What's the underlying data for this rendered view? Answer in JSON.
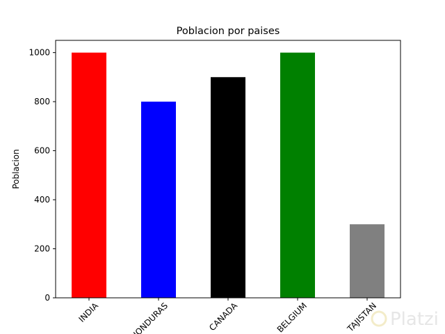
{
  "chart_data": {
    "type": "bar",
    "title": "Poblacion por paises",
    "xlabel": "",
    "ylabel": "Poblacion",
    "categories": [
      "INDIA",
      "HONDURAS",
      "CANADA",
      "BELGIUM",
      "TAJISTAN"
    ],
    "values": [
      1000,
      800,
      900,
      1000,
      300
    ],
    "colors": [
      "#ff0000",
      "#0000ff",
      "#000000",
      "#008000",
      "#808080"
    ],
    "ylim": [
      0,
      1050
    ],
    "yticks": [
      0,
      200,
      400,
      600,
      800,
      1000
    ],
    "grid": false,
    "legend": "none",
    "x_tick_rotation_deg": 45
  },
  "watermark": {
    "text": "Platzi"
  }
}
